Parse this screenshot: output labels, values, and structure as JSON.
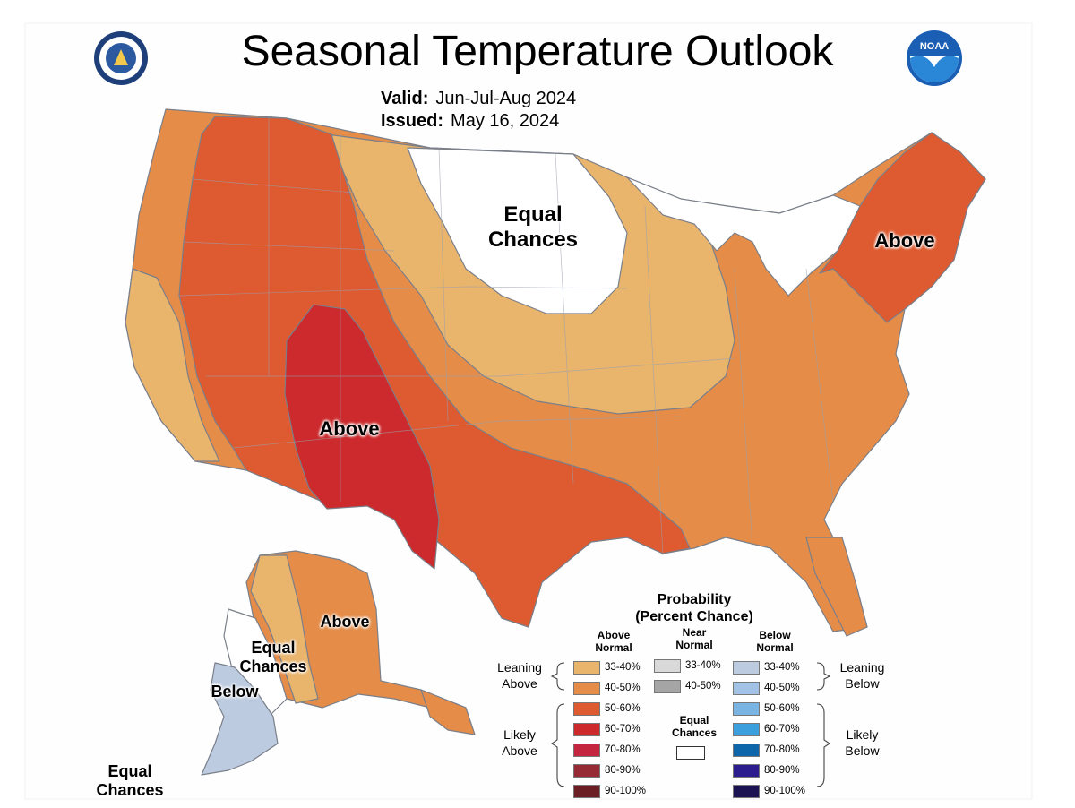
{
  "header": {
    "title": "Seasonal Temperature Outlook",
    "valid_label": "Valid:",
    "valid_value": "Jun-Jul-Aug 2024",
    "issued_label": "Issued:",
    "issued_value": "May 16, 2024"
  },
  "logos": {
    "left": "department-of-commerce-seal",
    "right": "NOAA"
  },
  "map_labels": {
    "conus_equal_1": "Equal",
    "conus_equal_2": "Chances",
    "northeast_above": "Above",
    "southwest_above": "Above",
    "alaska_above": "Above",
    "alaska_equal_1": "Equal",
    "alaska_equal_2": "Chances",
    "alaska_below": "Below",
    "aleutian_equal_1": "Equal",
    "aleutian_equal_2": "Chances"
  },
  "legend": {
    "title_1": "Probability",
    "title_2": "(Percent Chance)",
    "above_head_1": "Above",
    "above_head_2": "Normal",
    "near_head_1": "Near",
    "near_head_2": "Normal",
    "below_head_1": "Below",
    "below_head_2": "Normal",
    "leaning_above_1": "Leaning",
    "leaning_above_2": "Above",
    "likely_above_1": "Likely",
    "likely_above_2": "Above",
    "leaning_below_1": "Leaning",
    "leaning_below_2": "Below",
    "likely_below_1": "Likely",
    "likely_below_2": "Below",
    "equal_1": "Equal",
    "equal_2": "Chances",
    "above": [
      {
        "label": "33-40%",
        "color": "#E9B46C"
      },
      {
        "label": "40-50%",
        "color": "#E48C48"
      },
      {
        "label": "50-60%",
        "color": "#DE5A30"
      },
      {
        "label": "60-70%",
        "color": "#CC2A2C"
      },
      {
        "label": "70-80%",
        "color": "#C42640"
      },
      {
        "label": "80-90%",
        "color": "#962B35"
      },
      {
        "label": "90-100%",
        "color": "#6B1E24"
      }
    ],
    "near": [
      {
        "label": "33-40%",
        "color": "#D9D9D9"
      },
      {
        "label": "40-50%",
        "color": "#A5A5A5"
      }
    ],
    "below": [
      {
        "label": "33-40%",
        "color": "#BCCBE0"
      },
      {
        "label": "40-50%",
        "color": "#A2C3E6"
      },
      {
        "label": "50-60%",
        "color": "#79B4E2"
      },
      {
        "label": "60-70%",
        "color": "#3C9FDD"
      },
      {
        "label": "70-80%",
        "color": "#0E66AA"
      },
      {
        "label": "80-90%",
        "color": "#2C1D8F"
      },
      {
        "label": "90-100%",
        "color": "#1C1452"
      }
    ]
  }
}
